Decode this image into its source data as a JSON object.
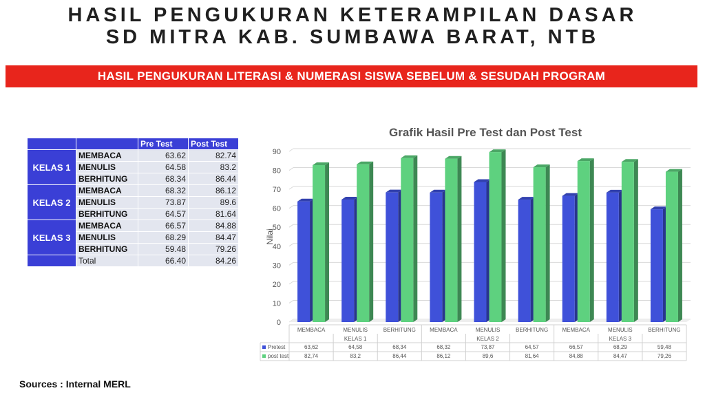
{
  "title": {
    "line1": "HASIL PENGUKURAN KETERAMPILAN DASAR",
    "line2": "SD MITRA KAB. SUMBAWA BARAT, NTB"
  },
  "banner": "HASIL PENGUKURAN LITERASI & NUMERASI SISWA SEBELUM & SESUDAH PROGRAM",
  "table": {
    "headers": [
      "Pre Test",
      "Post Test"
    ],
    "groups": [
      {
        "name": "KELAS 1",
        "rows": [
          {
            "label": "MEMBACA",
            "pre": "63.62",
            "post": "82.74"
          },
          {
            "label": "MENULIS",
            "pre": "64.58",
            "post": "83.2"
          },
          {
            "label": "BERHITUNG",
            "pre": "68.34",
            "post": "86.44"
          }
        ]
      },
      {
        "name": "KELAS 2",
        "rows": [
          {
            "label": "MEMBACA",
            "pre": "68.32",
            "post": "86.12"
          },
          {
            "label": "MENULIS",
            "pre": "73.87",
            "post": "89.6"
          },
          {
            "label": "BERHITUNG",
            "pre": "64.57",
            "post": "81.64"
          }
        ]
      },
      {
        "name": "KELAS 3",
        "rows": [
          {
            "label": "MEMBACA",
            "pre": "66.57",
            "post": "84.88"
          },
          {
            "label": "MENULIS",
            "pre": "68.29",
            "post": "84.47"
          },
          {
            "label": "BERHITUNG",
            "pre": "59.48",
            "post": "79.26"
          }
        ]
      }
    ],
    "total": {
      "label": "Total",
      "pre": "66.40",
      "post": "84.26"
    }
  },
  "chart_data": {
    "type": "bar",
    "title": "Grafik Hasil Pre Test dan Post Test",
    "ylabel": "Nilai",
    "ylim": [
      0,
      90
    ],
    "yticks": [
      0,
      10,
      20,
      30,
      40,
      50,
      60,
      70,
      80,
      90
    ],
    "categories": [
      "MEMBACA",
      "MENULIS",
      "BERHITUNG",
      "MEMBACA",
      "MENULIS",
      "BERHITUNG",
      "MEMBACA",
      "MENULIS",
      "BERHITUNG"
    ],
    "groups": [
      "KELAS 1",
      "KELAS 2",
      "KELAS 3"
    ],
    "series": [
      {
        "name": "Pretest",
        "color": "#3f51d9",
        "values": [
          63.62,
          64.58,
          68.34,
          68.32,
          73.87,
          64.57,
          66.57,
          68.29,
          59.48
        ],
        "labels": [
          "63,62",
          "64,58",
          "68,34",
          "68,32",
          "73,87",
          "64,57",
          "66,57",
          "68,29",
          "59,48"
        ]
      },
      {
        "name": "post test",
        "color": "#5ed17f",
        "values": [
          82.74,
          83.2,
          86.44,
          86.12,
          89.6,
          81.64,
          84.88,
          84.47,
          79.26
        ],
        "labels": [
          "82,74",
          "83,2",
          "86,44",
          "86,12",
          "89,6",
          "81,64",
          "84,88",
          "84,47",
          "79,26"
        ]
      }
    ],
    "grid": true,
    "legend": "data-table"
  },
  "source": "Sources : Internal MERL"
}
